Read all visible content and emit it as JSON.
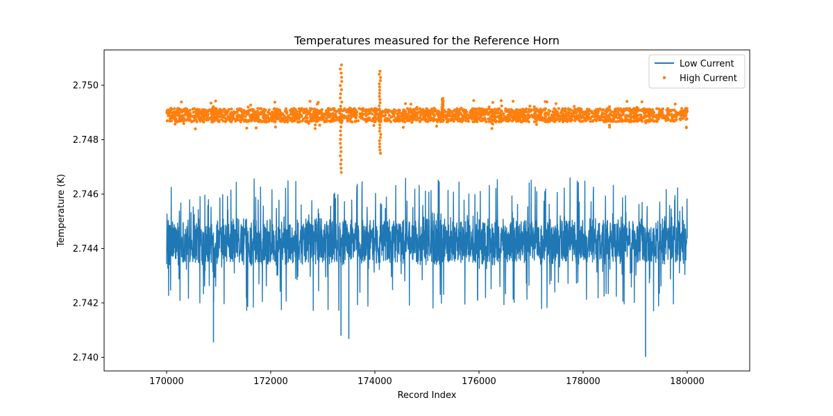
{
  "chart_data": {
    "type": "line+scatter",
    "title": "Temperatures measured for the Reference Horn",
    "xlabel": "Record Index",
    "ylabel": "Temperature (K)",
    "xlim": [
      168800,
      181200
    ],
    "ylim": [
      2.7395,
      2.7513
    ],
    "xticks": [
      170000,
      172000,
      174000,
      176000,
      178000,
      180000
    ],
    "xtick_labels": [
      "170000",
      "172000",
      "174000",
      "176000",
      "178000",
      "180000"
    ],
    "yticks": [
      2.74,
      2.742,
      2.744,
      2.746,
      2.748,
      2.75
    ],
    "ytick_labels": [
      "2.740",
      "2.742",
      "2.744",
      "2.746",
      "2.748",
      "2.750"
    ],
    "legend_position": "top-right",
    "series": [
      {
        "name": "Low Current",
        "kind": "line",
        "color": "#1f77b4",
        "x_range": [
          170000,
          180000
        ],
        "baseline": 2.7442,
        "band_low": 2.7434,
        "band_high": 2.7451,
        "min": 2.74,
        "max": 2.7466,
        "notable_points": [
          {
            "x": 170900,
            "y": 2.74055
          },
          {
            "x": 179200,
            "y": 2.74002
          },
          {
            "x": 173500,
            "y": 2.74068
          },
          {
            "x": 173350,
            "y": 2.7408
          }
        ]
      },
      {
        "name": "High Current",
        "kind": "scatter",
        "color": "#ff7f0e",
        "x_range": [
          170000,
          180000
        ],
        "baseline": 2.7489,
        "band_low": 2.74865,
        "band_high": 2.74915,
        "spikes": [
          {
            "x": 173350,
            "low": 2.7468,
            "high": 2.75075
          },
          {
            "x": 174100,
            "low": 2.7475,
            "high": 2.75052
          },
          {
            "x": 175300,
            "low": 2.7487,
            "high": 2.74952
          }
        ]
      }
    ]
  }
}
